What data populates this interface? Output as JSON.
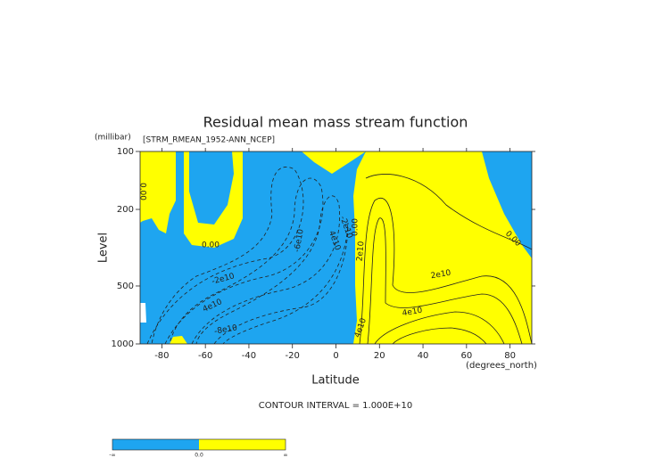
{
  "chart_data": {
    "type": "contour",
    "title": "Residual mean mass stream function",
    "subtitle": "[STRM_RMEAN_1952-ANN_NCEP]",
    "x_label": "Latitude",
    "x_units": "(degrees_north)",
    "y_label": "Level",
    "y_units": "(millibar)",
    "xlim": [
      -90,
      90
    ],
    "xticks": [
      -80,
      -60,
      -40,
      -20,
      0,
      20,
      40,
      60,
      80
    ],
    "ylim": [
      1000,
      100
    ],
    "yticks": [
      100,
      200,
      500,
      1000
    ],
    "y_log": true,
    "colors": [
      "#1ea5f0",
      "#ffff00"
    ],
    "contour_labels": [
      "0.00",
      "0.00",
      "0.00",
      "0.00",
      "-2e10",
      "4e10",
      "-8e10",
      "-6e10",
      "-2e10",
      "4e10",
      "2e10",
      "2e10",
      "4e10",
      "4e10"
    ],
    "note": "CONTOUR INTERVAL = 1.000E+10",
    "colorbar_labels": [
      "-∞",
      "0.0",
      "∞"
    ]
  }
}
